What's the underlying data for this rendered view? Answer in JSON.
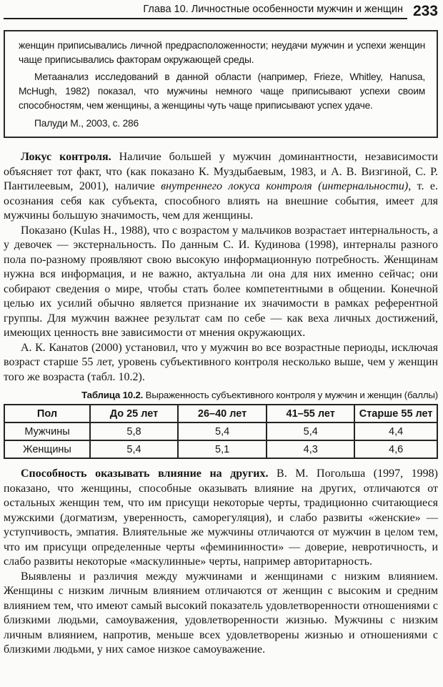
{
  "header": {
    "chapter_title": "Глава 10. Личностные особенности мужчин и женщин",
    "page_number": "233"
  },
  "quote_box": {
    "paragraphs": [
      "женщин приписывались личной предрасположенности; неудачи мужчин и успехи женщин чаще приписывались факторам окружающей среды.",
      "Метаанализ исследований в данной области (например, Frieze, Whitley, Hanusa, McHugh, 1982) показал, что мужчины немного чаще приписывают успехи своим способностям, чем женщины, а женщины чуть чаще приписывают успех удаче."
    ],
    "source": "Палуди М., 2003, с. 286"
  },
  "paragraphs": {
    "locus": {
      "lead": "Локус контроля.",
      "before_italic": " Наличие большей у мужчин доминантности, независимости объясняет тот факт, что (как показано К. Муздыбаевым, 1983, и А. В. Визгиной, С. Р. Пантилеевым, 2001), наличие ",
      "italic": "внутреннего локуса контроля (интернальности)",
      "after_italic": ", т. е. осознания себя как субъекта, способного влиять на внешние события, имеет для мужчины большую значимость, чем для женщины."
    },
    "kulas": "Показано (Kulas H., 1988), что с возрастом у мальчиков возрастает интернальность, а у девочек — экстернальность. По данным С. И. Кудинова (1998), интерналы разного пола по-разному проявляют свою высокую информационную потребность. Женщинам нужна вся информация, и не важно, актуальна ли она для них именно сейчас; они собирают сведения о мире, чтобы стать более компетентными в общении. Конечной целью их усилий обычно является признание их значимости в рамках референтной группы. Для мужчин важнее результат сам по себе — как веха личных достижений, имеющих ценность вне зависимости от мнения окружающих.",
    "kanatov": "А. К. Канатов (2000) установил, что у мужчин во все возрастные периоды, исключая возраст старше 55 лет, уровень субъективного контроля несколько выше, чем у женщин того же возраста (табл. 10.2).",
    "influence": {
      "lead": "Способность оказывать влияние на других.",
      "text": " В. М. Погольша (1997, 1998) показано, что женщины, способные оказывать влияние на других, отличаются от остальных женщин тем, что им присущи некоторые черты, традиционно считающиеся мужскими (догматизм, уверенность, саморегуляция), и слабо развиты «женские» — уступчивость, эмпатия. Влиятельные же мужчины отличаются от мужчин в целом тем, что им присущи определенные черты «фемининности» — доверие, невротичность, и слабо развиты некоторые «маскулинные» черты, например авторитарность."
    },
    "low_influence": "Выявлены и различия между мужчинами и женщинами с низким влиянием. Женщины с низким личным влиянием отличаются от женщин с высоким и средним влиянием тем, что имеют самый высокий показатель удовлетворенности отношениями с близкими людьми, самоуважения, удовлетворенности жизнью. Мужчины с низким личным влиянием, напротив, меньше всех удовлетворены жизнью и отношениями с близкими людьми, у них самое низкое самоуважение."
  },
  "table": {
    "caption_label": "Таблица 10.2.",
    "caption_text": " Выраженность субъективного контроля у мужчин и женщин (баллы)",
    "headers": [
      "Пол",
      "До 25 лет",
      "26–40 лет",
      "41–55 лет",
      "Старше 55 лет"
    ],
    "rows": [
      [
        "Мужчины",
        "5,8",
        "5,4",
        "5,4",
        "4,4"
      ],
      [
        "Женщины",
        "5,4",
        "5,1",
        "4,3",
        "4,6"
      ]
    ]
  }
}
